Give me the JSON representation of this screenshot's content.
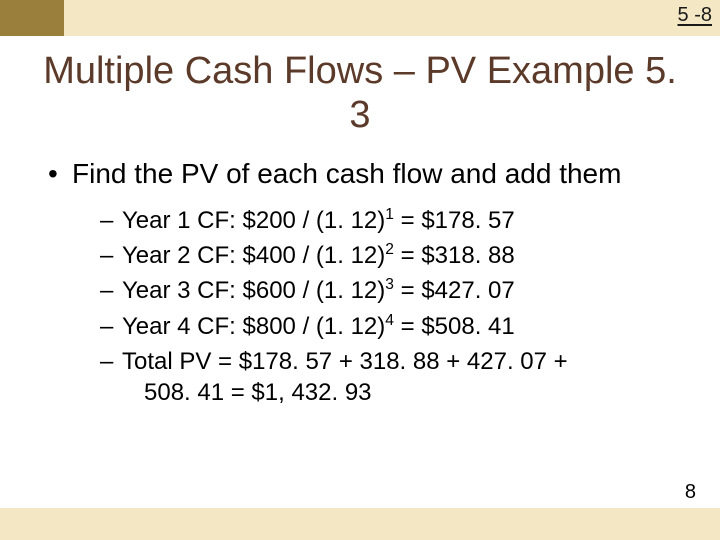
{
  "header": {
    "page_ref": "5 -8",
    "top_bar_color": "#f4e7c3",
    "left_stub_color": "#9a7f3c"
  },
  "title": "Multiple Cash Flows – PV Example 5. 3",
  "title_color": "#5b3a2a",
  "bullets": {
    "main": "Find the PV of each cash flow and add them",
    "sub": [
      {
        "label": "Year 1 CF:",
        "expr": "$200 / (1. 12)",
        "exp": "1",
        "result": " = $178. 57"
      },
      {
        "label": "Year 2 CF:",
        "expr": "$400 / (1. 12)",
        "exp": "2",
        "result": " = $318. 88"
      },
      {
        "label": "Year 3 CF:",
        "expr": "$600 / (1. 12)",
        "exp": "3",
        "result": " = $427. 07"
      },
      {
        "label": "Year 4 CF:",
        "expr": "$800 / (1. 12)",
        "exp": "4",
        "result": " = $508. 41"
      }
    ],
    "total_line1": "Total PV = $178. 57 + 318. 88 + 427. 07 +",
    "total_line2": "508. 41 = $1, 432. 93"
  },
  "footer": {
    "page_num": "8",
    "bottom_bar_color": "#f4e7c3"
  }
}
